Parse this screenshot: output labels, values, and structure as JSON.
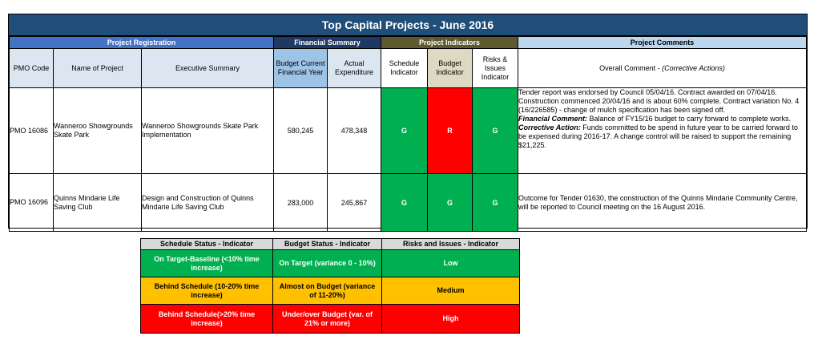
{
  "report": {
    "title": "Top Capital Projects - June 2016",
    "sections": {
      "registration": "Project Registration",
      "financial": "Financial Summary",
      "indicators": "Project Indicators",
      "comments": "Project Comments"
    },
    "columns": {
      "pmo_code": "PMO Code",
      "project_name": "Name of Project",
      "executive_summary": "Executive Summary",
      "budget": "Budget Current Financial Year",
      "actual": "Actual Expenditure",
      "schedule": "Schedule Indicator",
      "budget_ind": "Budget Indicator",
      "risks": "Risks & Issues Indicator",
      "comment_prefix": "Overall Comment - ",
      "comment_suffix": "(Corrective Actions)"
    },
    "rows": [
      {
        "pmo_code": "PMO 16086",
        "project_name": "Wanneroo Showgrounds Skate Park",
        "executive_summary": "Wanneroo Showgrounds Skate Park Implementation",
        "budget": "580,245",
        "actual": "478,348",
        "schedule": "G",
        "budget_ind": "R",
        "risks": "G",
        "comment": "Tender report was endorsed by Council 05/04/16.  Contract awarded on 07/04/16. Construction commenced 20/04/16 and is about 60% complete. Contract variation No. 4 (16/226585) - change of mulch specification has been signed off.",
        "financial_label": "Financial Comment:",
        "financial_text": "  Balance of FY15/16 budget to carry forward to complete works.",
        "corrective_label": "Corrective Action:",
        "corrective_text": "   Funds committed to be spend in future year to be carried forward to be expensed during 2016-17. A change control will be raised to support the remaining $21,225."
      },
      {
        "pmo_code": "PMO 16096",
        "project_name": "Quinns Mindarie Life Saving Club",
        "executive_summary": "Design and Construction of Quinns Mindarie Life Saving Club",
        "budget": "283,000",
        "actual": "245,867",
        "schedule": "G",
        "budget_ind": "G",
        "risks": "G",
        "comment": "Outcome for Tender 01630, the construction of the Quinns Mindarie Community Centre, will be reported to Council meeting on the 16 August 2016."
      }
    ],
    "colors": {
      "G": "#00b050",
      "R": "#ff0000",
      "title": "#1f4e79"
    }
  },
  "legend": {
    "headers": {
      "schedule": "Schedule Status - Indicator",
      "budget": "Budget Status - Indicator",
      "risks": "Risks and Issues - Indicator"
    },
    "rows": [
      {
        "level": "green",
        "schedule": "On Target-Baseline (<10% time increase)",
        "budget": "On Target (variance 0 - 10%)",
        "risks": "Low"
      },
      {
        "level": "amber",
        "schedule": "Behind Schedule (10-20% time increase)",
        "budget": "Almost on Budget (variance of 11-20%)",
        "risks": "Medium"
      },
      {
        "level": "red",
        "schedule": "Behind Schedule(>20% time increase)",
        "budget": "Under/over Budget (var. of 21% or more)",
        "risks": "High"
      }
    ],
    "colors": {
      "green": "#00b050",
      "amber": "#ffc000",
      "red": "#ff0000"
    }
  }
}
